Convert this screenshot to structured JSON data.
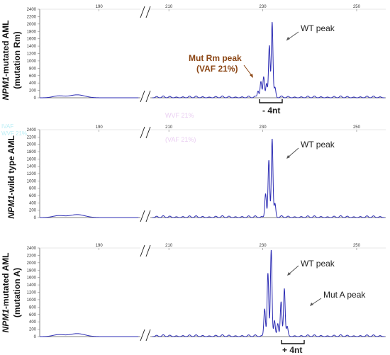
{
  "chart_data": [
    {
      "type": "line",
      "panel_label_italic": "NPM1",
      "panel_label_rest": "-mutated AML",
      "panel_label_line2": "(mutation Rm)",
      "x_ticks": [
        "190",
        "210",
        "230",
        "250"
      ],
      "y_ticks": [
        "0",
        "200",
        "400",
        "600",
        "800",
        "1000",
        "1200",
        "1400",
        "1600",
        "1800",
        "2000",
        "2200",
        "2400"
      ],
      "ylim": [
        0,
        2400
      ],
      "peaks": [
        {
          "x": 229.0,
          "y": 180
        },
        {
          "x": 229.6,
          "y": 420
        },
        {
          "x": 230.2,
          "y": 560
        },
        {
          "x": 230.8,
          "y": 380
        },
        {
          "x": 231.4,
          "y": 1400
        },
        {
          "x": 232.0,
          "y": 2050
        },
        {
          "x": 232.6,
          "y": 250
        }
      ],
      "annotations": [
        {
          "text": "WT peak",
          "style": "normal"
        },
        {
          "text": "Mut Rm peak",
          "style": "mut"
        },
        {
          "text": "(VAF 21%)",
          "style": "mut"
        }
      ],
      "bracket_label": "- 4nt"
    },
    {
      "type": "line",
      "panel_label_italic": "NPM1",
      "panel_label_rest": "-wild type AML",
      "panel_label_line2": "",
      "x_ticks": [
        "190",
        "210",
        "230",
        "250"
      ],
      "y_ticks": [
        "0",
        "200",
        "400",
        "600",
        "800",
        "1000",
        "1200",
        "1400",
        "1600",
        "1800",
        "2000",
        "2200",
        "2400"
      ],
      "ylim": [
        0,
        2400
      ],
      "peaks": [
        {
          "x": 230.6,
          "y": 650
        },
        {
          "x": 231.3,
          "y": 1550
        },
        {
          "x": 232.0,
          "y": 2150
        },
        {
          "x": 232.6,
          "y": 350
        }
      ],
      "annotations": [
        {
          "text": "WT peak",
          "style": "normal"
        }
      ],
      "bracket_label": ""
    },
    {
      "type": "line",
      "panel_label_italic": "NPM1",
      "panel_label_rest": "-mutated AML",
      "panel_label_line2": "(mutation A)",
      "x_ticks": [
        "190",
        "210",
        "230",
        "250"
      ],
      "y_ticks": [
        "0",
        "200",
        "400",
        "600",
        "800",
        "1000",
        "1200",
        "1400",
        "1600",
        "1800",
        "2000",
        "2200",
        "2400"
      ],
      "ylim": [
        0,
        2400
      ],
      "peaks": [
        {
          "x": 230.4,
          "y": 750
        },
        {
          "x": 231.1,
          "y": 1700
        },
        {
          "x": 231.8,
          "y": 2350
        },
        {
          "x": 232.5,
          "y": 400
        },
        {
          "x": 233.2,
          "y": 350
        },
        {
          "x": 233.9,
          "y": 900
        },
        {
          "x": 234.6,
          "y": 1300
        },
        {
          "x": 235.2,
          "y": 250
        }
      ],
      "annotations": [
        {
          "text": "WT peak",
          "style": "normal"
        },
        {
          "text": "Mut A peak",
          "style": "normal"
        }
      ],
      "bracket_label": "+ 4nt"
    }
  ],
  "colors": {
    "trace": "#2d2db4",
    "axis": "#808080",
    "grid": "#d0d0d0",
    "arrow_normal": "#555555",
    "arrow_mut": "#8b4513",
    "mut_text": "#8b4513"
  },
  "ghost_text": [
    "WVF 21%",
    "(VAF 21%)",
    "IVAF",
    "WVF 21%"
  ]
}
